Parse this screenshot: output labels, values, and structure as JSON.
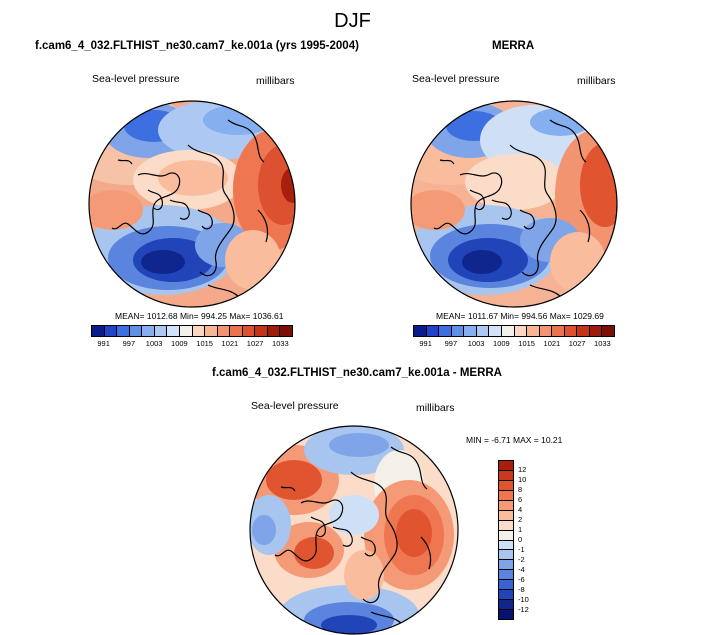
{
  "figure": {
    "title": "DJF"
  },
  "panels": [
    {
      "title": "f.cam6_4_032.FLTHIST_ne30.cam7_ke.001a (yrs 1995-2004)",
      "left_label": "Sea-level pressure",
      "right_label": "millibars",
      "stats": "MEAN= 1012.68  Min= 994.25  Max= 1036.61"
    },
    {
      "title": "MERRA",
      "left_label": "Sea-level pressure",
      "right_label": "millibars",
      "stats": "MEAN= 1011.67  Min= 994.56  Max= 1029.69"
    },
    {
      "title": "f.cam6_4_032.FLTHIST_ne30.cam7_ke.001a - MERRA",
      "left_label": "Sea-level pressure",
      "right_label": "millibars",
      "stats": "MIN =  -6.71  MAX =  10.21"
    }
  ],
  "abs_colorbar": {
    "ticks": [
      "991",
      "997",
      "1003",
      "1009",
      "1015",
      "1021",
      "1027",
      "1033"
    ],
    "colors": [
      "#0a1c8c",
      "#2043c8",
      "#3e6fe0",
      "#5f8fe8",
      "#86afef",
      "#adc9f3",
      "#d2e2f8",
      "#f2f0ea",
      "#fbd6c1",
      "#f8b595",
      "#f39470",
      "#ea7350",
      "#dc5230",
      "#c43418",
      "#a01c0a",
      "#7a0f06"
    ]
  },
  "diff_colorbar": {
    "ticks": [
      "12",
      "10",
      "8",
      "6",
      "4",
      "2",
      "1",
      "0",
      "-1",
      "-2",
      "-4",
      "-6",
      "-8",
      "-10",
      "-12"
    ],
    "colors": [
      "#a8200c",
      "#c9381a",
      "#e05430",
      "#ee7650",
      "#f59a76",
      "#f9bd9e",
      "#fbdcc8",
      "#f4efe8",
      "#cfe0f6",
      "#a8c5f0",
      "#7fa5e8",
      "#5a84dd",
      "#3a62d0",
      "#2144b8",
      "#0f268e",
      "#061370"
    ]
  },
  "chart_data": [
    {
      "type": "heatmap",
      "title": "f.cam6_4_032.FLTHIST_ne30.cam7_ke.001a (yrs 1995-2004)",
      "variable": "Sea-level pressure",
      "units": "millibars",
      "mean": 1012.68,
      "min": 994.25,
      "max": 1036.61,
      "projection": "north polar stereographic"
    },
    {
      "type": "heatmap",
      "title": "MERRA",
      "variable": "Sea-level pressure",
      "units": "millibars",
      "mean": 1011.67,
      "min": 994.56,
      "max": 1029.69,
      "projection": "north polar stereographic"
    },
    {
      "type": "heatmap",
      "title": "f.cam6_4_032.FLTHIST_ne30.cam7_ke.001a - MERRA",
      "variable": "Sea-level pressure",
      "units": "millibars",
      "min": -6.71,
      "max": 10.21,
      "projection": "north polar stereographic"
    }
  ]
}
